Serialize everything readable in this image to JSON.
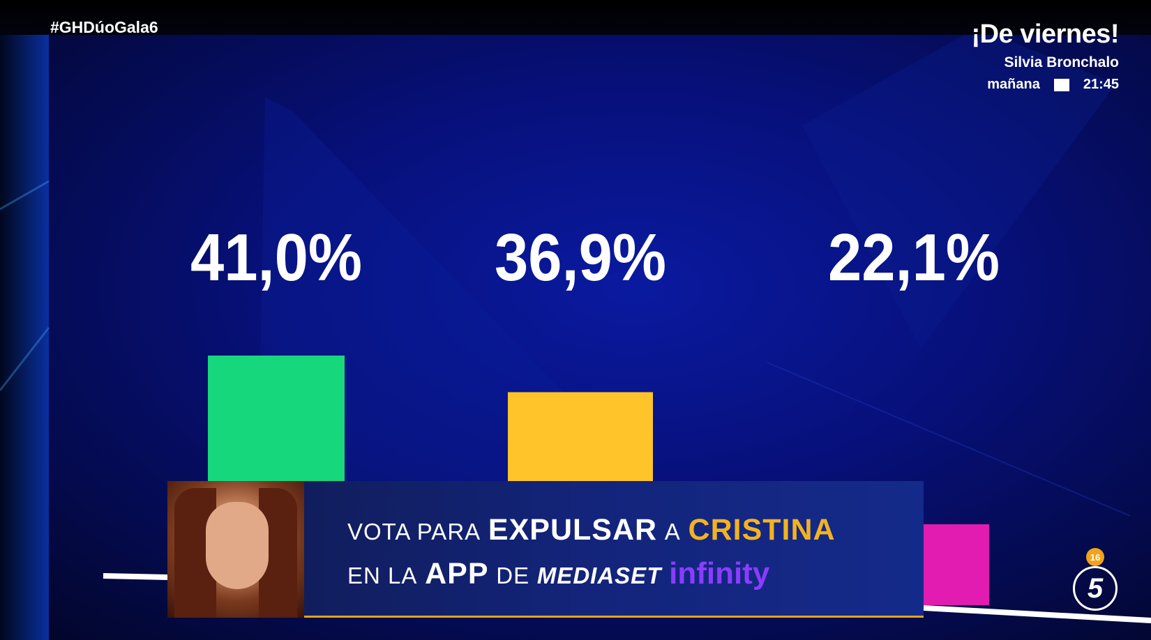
{
  "overlay": {
    "hashtag": "#GHDúoGala6",
    "promo": {
      "title": "¡De viernes!",
      "host": "Silvia Bronchalo",
      "day": "mañana",
      "time": "21:45"
    }
  },
  "chart_data": {
    "type": "bar",
    "categories": [
      "",
      "",
      ""
    ],
    "values": [
      41.0,
      36.9,
      22.1
    ],
    "value_labels": [
      "41,0%",
      "36,9%",
      "22,1%"
    ],
    "colors": [
      "#17d77c",
      "#ffc42a",
      "#e21cb0"
    ],
    "ylim": [
      0,
      41.0
    ],
    "grid": false,
    "legend": "none",
    "title": "",
    "xlabel": "",
    "ylabel": ""
  },
  "banner": {
    "w1": "VOTA PARA",
    "w2": "EXPULSAR",
    "w3": "A",
    "w4": "CRISTINA",
    "w5": "EN LA",
    "w6": "APP",
    "w7": "DE",
    "w8": "MEDIASET",
    "w9": "infinity"
  },
  "channel": {
    "logo": "5",
    "rating": "16"
  },
  "colors": {
    "banner_bg": "#13247a",
    "accent_gold": "#f2b321",
    "background": "#07107a"
  }
}
